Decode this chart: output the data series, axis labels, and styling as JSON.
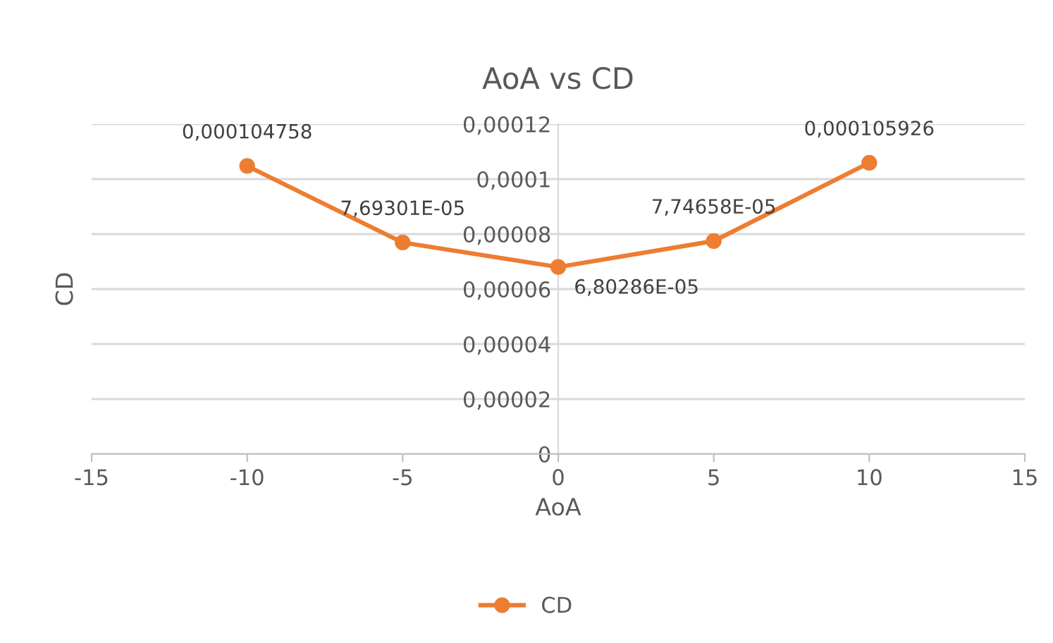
{
  "chart_data": {
    "type": "line",
    "title": "AoA vs CD",
    "xlabel": "AoA",
    "ylabel": "CD",
    "x": [
      -10,
      -5,
      0,
      5,
      10
    ],
    "series": [
      {
        "name": "CD",
        "color": "#ed7d31",
        "values": [
          0.000104758,
          7.69301e-05,
          6.80286e-05,
          7.74658e-05,
          0.000105926
        ],
        "value_labels": [
          "0,000104758",
          "7,69301E-05",
          "6,80286E-05",
          "7,74658E-05",
          "0,000105926"
        ]
      }
    ],
    "xlim": [
      -15,
      15
    ],
    "xticks": [
      -15,
      -10,
      -5,
      0,
      5,
      10,
      15
    ],
    "ylim": [
      0,
      0.00012
    ],
    "yticks": [
      {
        "value": 0,
        "label": "0"
      },
      {
        "value": 2e-05,
        "label": "0,00002"
      },
      {
        "value": 4e-05,
        "label": "0,00004"
      },
      {
        "value": 6e-05,
        "label": "0,00006"
      },
      {
        "value": 8e-05,
        "label": "0,00008"
      },
      {
        "value": 0.0001,
        "label": "0,0001"
      },
      {
        "value": 0.00012,
        "label": "0,00012"
      }
    ],
    "grid": "y",
    "legend": "bottom",
    "marker": "circle",
    "line_style": "solid"
  }
}
